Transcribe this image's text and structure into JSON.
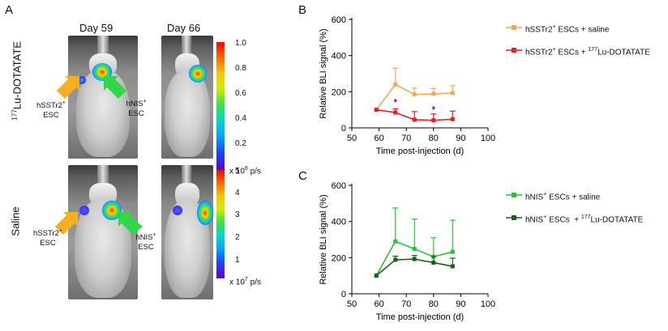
{
  "panel_a": {
    "letter": "A",
    "day_headers": [
      "Day 59",
      "Day 66"
    ],
    "row_labels": {
      "top_prefix": "177",
      "top_main": "Lu-DOTATATE",
      "bottom": "Saline"
    },
    "callouts": {
      "sstr2_line1": "hSSTr2",
      "sstr2_sup": "+",
      "sstr2_line2": "ESC",
      "nis_line1": "hNIS",
      "nis_sup": "+",
      "nis_line2": "ESC"
    },
    "colorbar_top": {
      "ticks": [
        "1.0",
        "0.8",
        "0.6",
        "0.4",
        "0.2"
      ],
      "unit_prefix": "x 10",
      "unit_exp": "6",
      "unit_suffix": " p/s"
    },
    "colorbar_bottom": {
      "ticks": [
        "5",
        "4",
        "3",
        "2",
        "1"
      ],
      "unit_prefix": "x 10",
      "unit_exp": "7",
      "unit_suffix": " p/s"
    },
    "colors": {
      "sstr2_arrow": "#f5b022",
      "nis_arrow": "#33d648"
    }
  },
  "chart_data": [
    {
      "type": "line",
      "letter": "B",
      "ylabel": "Relative BLI signal (%)",
      "xlabel": "Time post-injection (d)",
      "xlim": [
        50,
        100
      ],
      "ylim": [
        0,
        600
      ],
      "xticks": [
        50,
        60,
        70,
        80,
        90,
        100
      ],
      "yticks": [
        0,
        200,
        400,
        600
      ],
      "series": [
        {
          "name_main": "hSSTr2",
          "name_sup": "+",
          "name_rest": " ESCs + saline",
          "color": "#f0a95c",
          "x": [
            59,
            66,
            73,
            80,
            87
          ],
          "y": [
            100,
            240,
            185,
            188,
            193
          ],
          "err": [
            0,
            90,
            35,
            30,
            40
          ]
        },
        {
          "name_main": "hSSTr2",
          "name_sup": "+",
          "name_rest": " ESCs + ",
          "name_sup2": "177",
          "name_rest2": "Lu-DOTATATE",
          "color": "#e01f26",
          "x": [
            59,
            66,
            73,
            80,
            87
          ],
          "y": [
            100,
            85,
            45,
            42,
            48
          ],
          "err": [
            0,
            20,
            45,
            35,
            45
          ]
        }
      ],
      "annotations": [
        {
          "text": "*",
          "x": 66,
          "y": 120
        },
        {
          "text": "*",
          "x": 80,
          "y": 80
        }
      ]
    },
    {
      "type": "line",
      "letter": "C",
      "ylabel": "Relative BLI signal (%)",
      "xlabel": "Time post-injection (d)",
      "xlim": [
        50,
        100
      ],
      "ylim": [
        0,
        600
      ],
      "xticks": [
        50,
        60,
        70,
        80,
        90,
        100
      ],
      "yticks": [
        0,
        200,
        400,
        600
      ],
      "series": [
        {
          "name_main": "hNIS",
          "name_sup": "+",
          "name_rest": " ESCs + saline",
          "color": "#2fbf3a",
          "x": [
            59,
            66,
            73,
            80,
            87
          ],
          "y": [
            100,
            290,
            248,
            205,
            232
          ],
          "err": [
            0,
            185,
            165,
            105,
            175
          ]
        },
        {
          "name_main": "hNIS",
          "name_sup": "+",
          "name_rest": " ESCs  + ",
          "name_sup2": "177",
          "name_rest2": "Lu-DOTATATE",
          "color": "#1b5e20",
          "x": [
            59,
            66,
            73,
            80,
            87
          ],
          "y": [
            100,
            188,
            192,
            172,
            152
          ],
          "err": [
            0,
            20,
            20,
            35,
            45
          ]
        }
      ]
    }
  ]
}
